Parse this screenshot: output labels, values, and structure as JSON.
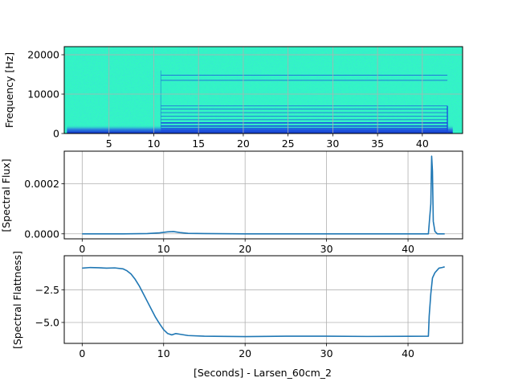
{
  "colors": {
    "line": "#1f77b4",
    "grid": "#b0b0b0",
    "spec_background": "#33f5c4",
    "spec_band": "#1a43e0"
  },
  "chart_data": [
    {
      "id": "spectrogram",
      "type": "heatmap",
      "ylabel": "Frequency [Hz]",
      "xlim": [
        0,
        44.5
      ],
      "ylim": [
        0,
        22050
      ],
      "xticks": [
        5,
        10,
        15,
        20,
        25,
        30,
        35,
        40
      ],
      "yticks": [
        0,
        10000,
        20000
      ],
      "ytick_labels": [
        "0",
        "10000",
        "20000"
      ],
      "grid": true,
      "colormap": "jet",
      "features": {
        "harmonic_onset_s": 10.8,
        "harmonic_end_s": 42.8,
        "harmonic_lines_hz": [
          14800,
          13500,
          7000,
          6200,
          5300,
          4400,
          3500,
          2700,
          1900,
          1200,
          700
        ],
        "low_freq_band_hz": [
          0,
          2200
        ]
      }
    },
    {
      "id": "spectral-flux",
      "type": "line",
      "ylabel": "[Spectral Flux]",
      "xlim": [
        -2.2,
        46.7
      ],
      "ylim": [
        -2e-05,
        0.00033
      ],
      "xticks": [
        0,
        10,
        20,
        30,
        40
      ],
      "yticks": [
        0.0,
        0.0002
      ],
      "ytick_labels": [
        "0.0000",
        "0.0002"
      ],
      "grid": true,
      "series": [
        {
          "x": [
            0,
            5,
            8,
            9.5,
            10.5,
            11.2,
            12,
            13,
            15,
            20,
            30,
            40,
            42.5,
            42.8,
            42.9,
            43.0,
            43.1,
            43.3,
            43.6,
            44.5
          ],
          "y": [
            0.0,
            0.0,
            1e-06,
            4e-06,
            8e-06,
            9e-06,
            5e-06,
            2e-06,
            1e-06,
            0.0,
            0.0,
            0.0,
            0.0,
            0.00012,
            0.00031,
            0.00025,
            5e-05,
            1e-05,
            0.0,
            0.0
          ]
        }
      ]
    },
    {
      "id": "spectral-flatness",
      "type": "line",
      "ylabel": "[Spectral Flattness]",
      "xlabel": "[Seconds] - Larsen_60cm_2",
      "xlim": [
        -2.2,
        46.7
      ],
      "ylim": [
        -6.6,
        0.1
      ],
      "xticks": [
        0,
        10,
        20,
        30,
        40
      ],
      "yticks": [
        -2.5,
        -5.0
      ],
      "ytick_labels": [
        "−2.5",
        "−5.0"
      ],
      "grid": true,
      "series": [
        {
          "x": [
            0,
            1,
            2,
            3,
            4,
            5,
            5.5,
            6,
            6.5,
            7,
            7.5,
            8,
            8.5,
            9,
            9.5,
            10,
            10.5,
            11,
            11.5,
            12,
            13,
            15,
            20,
            25,
            30,
            35,
            40,
            42.5,
            42.6,
            42.8,
            43.0,
            43.3,
            43.8,
            44.2,
            44.5
          ],
          "y": [
            -0.85,
            -0.8,
            -0.82,
            -0.85,
            -0.83,
            -0.9,
            -1.05,
            -1.3,
            -1.7,
            -2.2,
            -2.8,
            -3.4,
            -4.0,
            -4.6,
            -5.1,
            -5.55,
            -5.85,
            -5.95,
            -5.85,
            -5.9,
            -6.0,
            -6.05,
            -6.08,
            -6.05,
            -6.05,
            -6.07,
            -6.06,
            -6.05,
            -4.5,
            -2.8,
            -1.6,
            -1.2,
            -0.85,
            -0.8,
            -0.75
          ]
        }
      ]
    }
  ]
}
